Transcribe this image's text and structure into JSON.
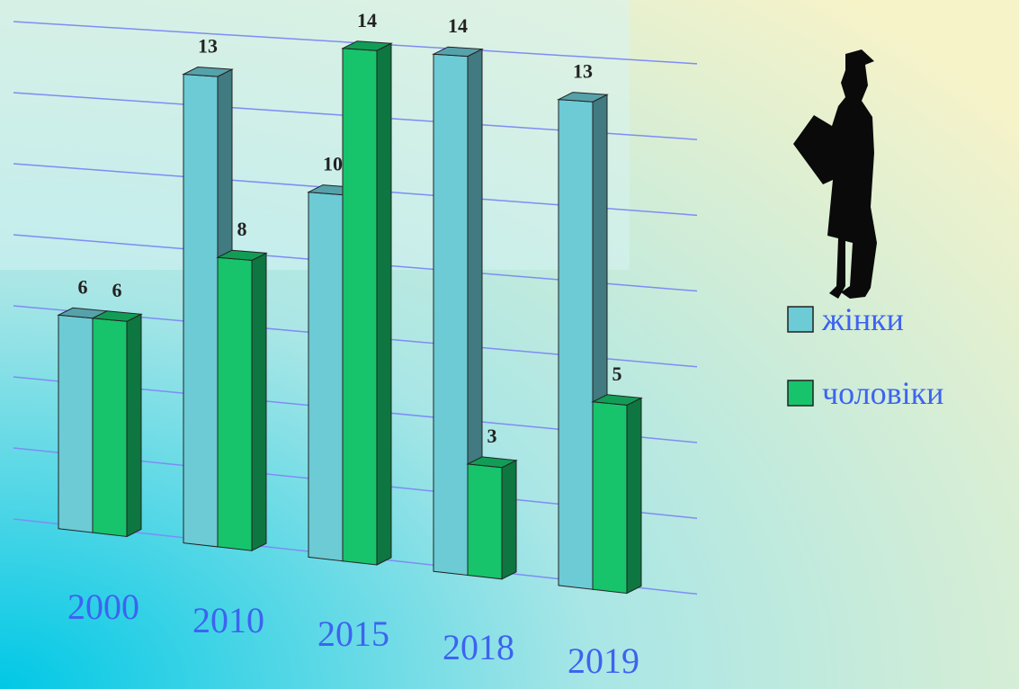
{
  "chart_data": {
    "type": "bar3d",
    "categories": [
      "2000",
      "2010",
      "2015",
      "2018",
      "2019"
    ],
    "series": [
      {
        "name": "жінки",
        "color": "#6ccbd5",
        "values": [
          6,
          13,
          10,
          14,
          13
        ]
      },
      {
        "name": "чоловіки",
        "color": "#17c46b",
        "values": [
          6,
          8,
          14,
          3,
          5
        ]
      }
    ],
    "ylim": [
      0,
      14
    ],
    "yticks": [
      0,
      2,
      4,
      6,
      8,
      10,
      12,
      14
    ],
    "grid": true
  }
}
